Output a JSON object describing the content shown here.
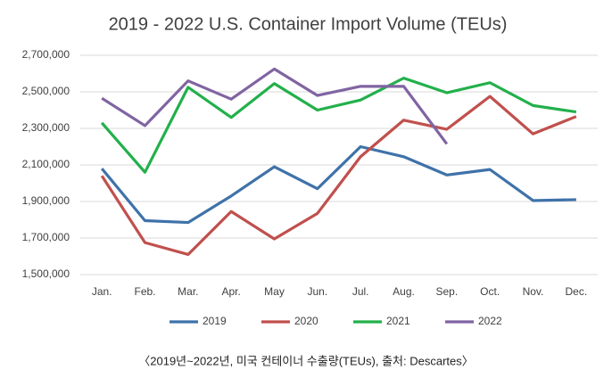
{
  "chart_data": {
    "type": "line",
    "title": "2019 - 2022 U.S. Container Import Volume (TEUs)",
    "caption": "〈2019년~2022년, 미국 컨테이너 수출량(TEUs), 출처: Descartes〉",
    "categories": [
      "Jan.",
      "Feb.",
      "Mar.",
      "Apr.",
      "May",
      "Jun.",
      "Jul.",
      "Aug.",
      "Sep.",
      "Oct.",
      "Nov.",
      "Dec."
    ],
    "series": [
      {
        "name": "2019",
        "color": "#3f72a9",
        "values": [
          2080000,
          1795000,
          1785000,
          1930000,
          2090000,
          1970000,
          2200000,
          2145000,
          2045000,
          2075000,
          1905000,
          1910000
        ]
      },
      {
        "name": "2020",
        "color": "#c0504d",
        "values": [
          2040000,
          1675000,
          1610000,
          1845000,
          1695000,
          1835000,
          2145000,
          2345000,
          2295000,
          2475000,
          2270000,
          2365000
        ]
      },
      {
        "name": "2021",
        "color": "#22b04b",
        "values": [
          2330000,
          2060000,
          2525000,
          2360000,
          2545000,
          2400000,
          2455000,
          2575000,
          2495000,
          2550000,
          2425000,
          2390000
        ]
      },
      {
        "name": "2022",
        "color": "#8064a2",
        "values": [
          2465000,
          2315000,
          2560000,
          2460000,
          2625000,
          2480000,
          2530000,
          2530000,
          2215000,
          null,
          null,
          null
        ]
      }
    ],
    "ylim": [
      1500000,
      2700000
    ],
    "yticks": [
      {
        "value": 1500000,
        "label": "1,500,000"
      },
      {
        "value": 1700000,
        "label": "1,700,000"
      },
      {
        "value": 1900000,
        "label": "1,900,000"
      },
      {
        "value": 2100000,
        "label": "2,100,000"
      },
      {
        "value": 2300000,
        "label": "2,300,000"
      },
      {
        "value": 2500000,
        "label": "2,500,000"
      },
      {
        "value": 2700000,
        "label": "2,700,000"
      }
    ],
    "grid": true,
    "legend": "bottom"
  }
}
